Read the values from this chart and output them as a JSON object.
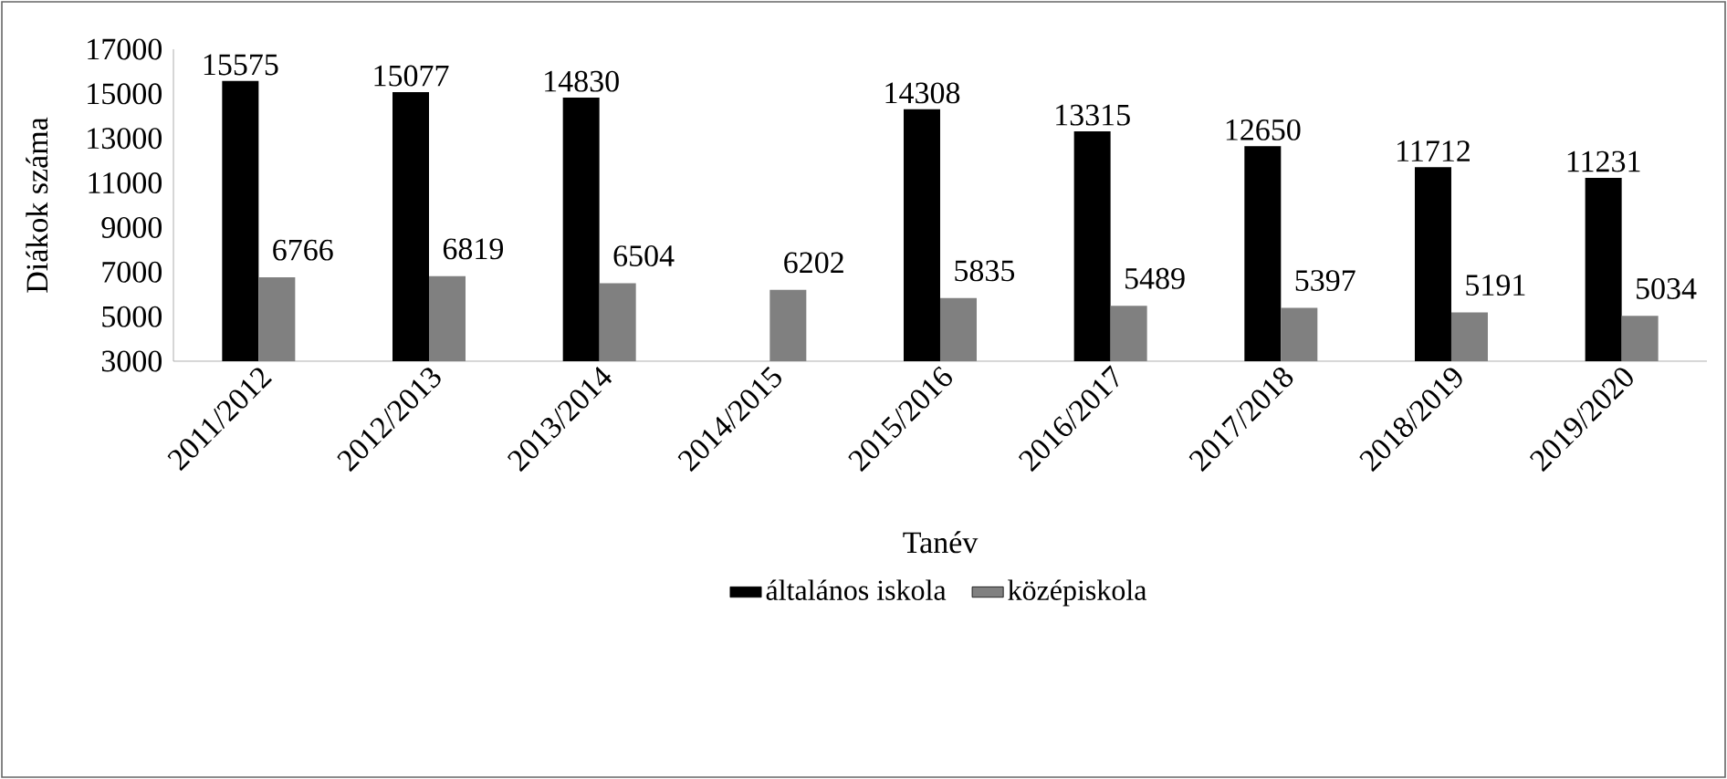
{
  "chart_data": {
    "type": "bar",
    "xlabel": "Tanév",
    "ylabel": "Diákok száma",
    "categories": [
      "2011/2012",
      "2012/2013",
      "2013/2014",
      "2014/2015",
      "2015/2016",
      "2016/2017",
      "2017/2018",
      "2018/2019",
      "2019/2020"
    ],
    "series": [
      {
        "name": "általános iskola",
        "color": "#000000",
        "values": [
          15575,
          15077,
          14830,
          null,
          14308,
          13315,
          12650,
          11712,
          11231
        ]
      },
      {
        "name": "középiskola",
        "color": "#808080",
        "values": [
          6766,
          6819,
          6504,
          6202,
          5835,
          5489,
          5397,
          5191,
          5034
        ]
      }
    ],
    "ylim": [
      3000,
      17000
    ],
    "yticks": [
      3000,
      5000,
      7000,
      9000,
      11000,
      13000,
      15000,
      17000
    ],
    "data_labels": true,
    "grid": false,
    "legend": "bottom"
  }
}
